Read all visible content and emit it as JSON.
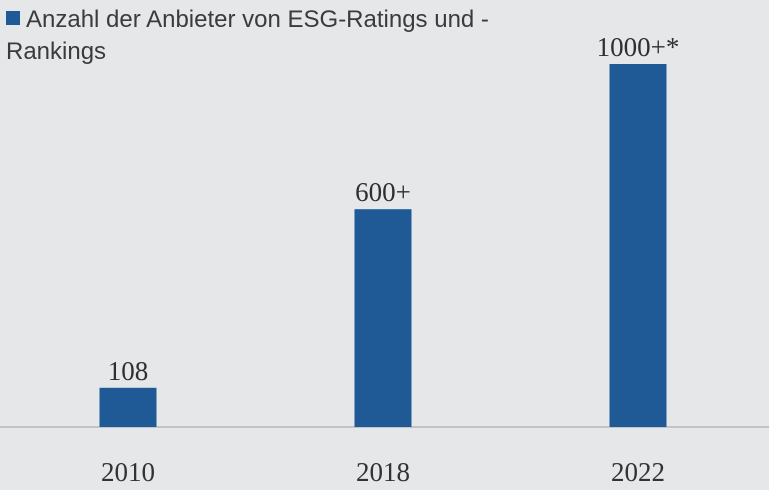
{
  "colors": {
    "background": "#e6e7e9",
    "bar": "#1f5a96",
    "axis": "#b7b9bc",
    "text": "#333333"
  },
  "legend": {
    "label": "Anzahl der Anbieter von ESG-Ratings und -Rankings",
    "position": "top-left"
  },
  "chart_data": {
    "type": "bar",
    "categories": [
      "2010",
      "2018",
      "2022"
    ],
    "series": [
      {
        "name": "Anzahl der Anbieter von ESG-Ratings und -Rankings",
        "values": [
          108,
          600,
          1000
        ],
        "data_labels": [
          "108",
          "600+",
          "1000+*"
        ]
      }
    ],
    "ylim": [
      0,
      1000
    ],
    "grid": false,
    "legend": "top-left"
  }
}
